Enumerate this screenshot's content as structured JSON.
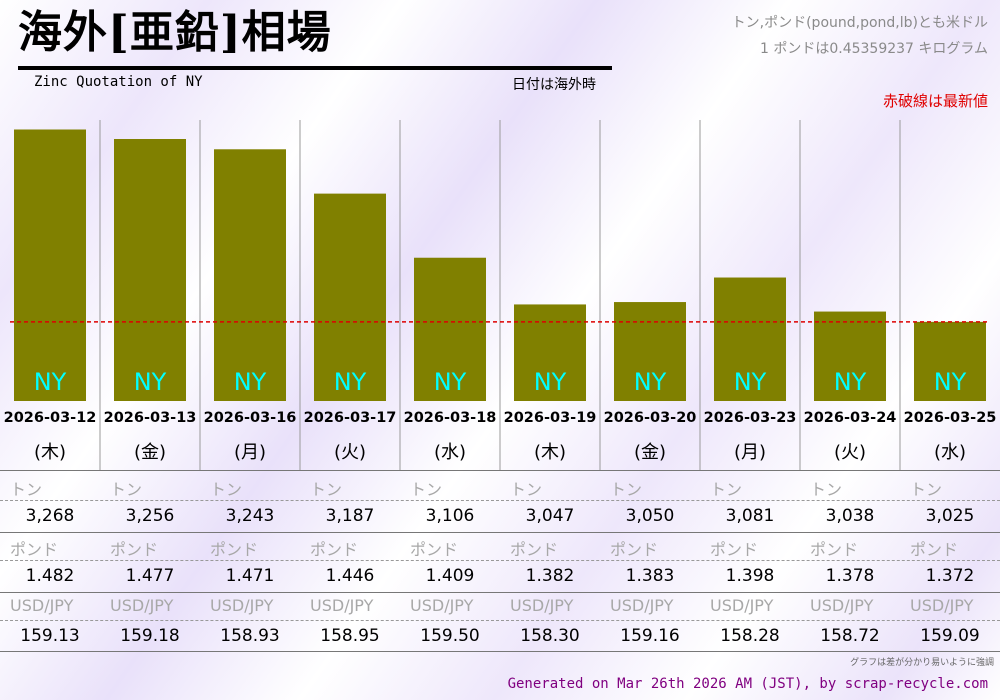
{
  "header": {
    "title": "海外[亜鉛]相場",
    "subtitle": "Zinc Quotation of NY",
    "date_note": "日付は海外時",
    "unit_note_1": "トン,ポンド(pound,pond,lb)とも米ドル",
    "unit_note_2": "1 ポンドは0.45359237 キログラム",
    "latest_note": "赤破線は最新値"
  },
  "row_labels": {
    "ton": "トン",
    "pound": "ポンド",
    "usdjpy": "USD/JPY"
  },
  "chart_data": {
    "type": "bar",
    "bar_label": "NY",
    "bar_color": "#808000",
    "bar_label_color": "#00ffff",
    "latest_line_color": "#dd0000",
    "categories": [
      "2026-03-12",
      "2026-03-13",
      "2026-03-16",
      "2026-03-17",
      "2026-03-18",
      "2026-03-19",
      "2026-03-20",
      "2026-03-23",
      "2026-03-24",
      "2026-03-25"
    ],
    "weekdays": [
      "(木)",
      "(金)",
      "(月)",
      "(火)",
      "(水)",
      "(木)",
      "(金)",
      "(月)",
      "(火)",
      "(水)"
    ],
    "series": [
      {
        "name": "NY",
        "values": [
          3268,
          3256,
          3243,
          3187,
          3106,
          3047,
          3050,
          3081,
          3038,
          3025
        ]
      }
    ],
    "ton": [
      "3,268",
      "3,256",
      "3,243",
      "3,187",
      "3,106",
      "3,047",
      "3,050",
      "3,081",
      "3,038",
      "3,025"
    ],
    "pound": [
      "1.482",
      "1.477",
      "1.471",
      "1.446",
      "1.409",
      "1.382",
      "1.383",
      "1.398",
      "1.378",
      "1.372"
    ],
    "usdjpy": [
      "159.13",
      "159.18",
      "158.93",
      "158.95",
      "159.50",
      "158.30",
      "159.16",
      "158.28",
      "158.72",
      "159.09"
    ]
  },
  "footnote": "グラフは差が分かり易いように強調",
  "footer": "Generated on Mar 26th 2026 AM (JST), by scrap-recycle.com"
}
